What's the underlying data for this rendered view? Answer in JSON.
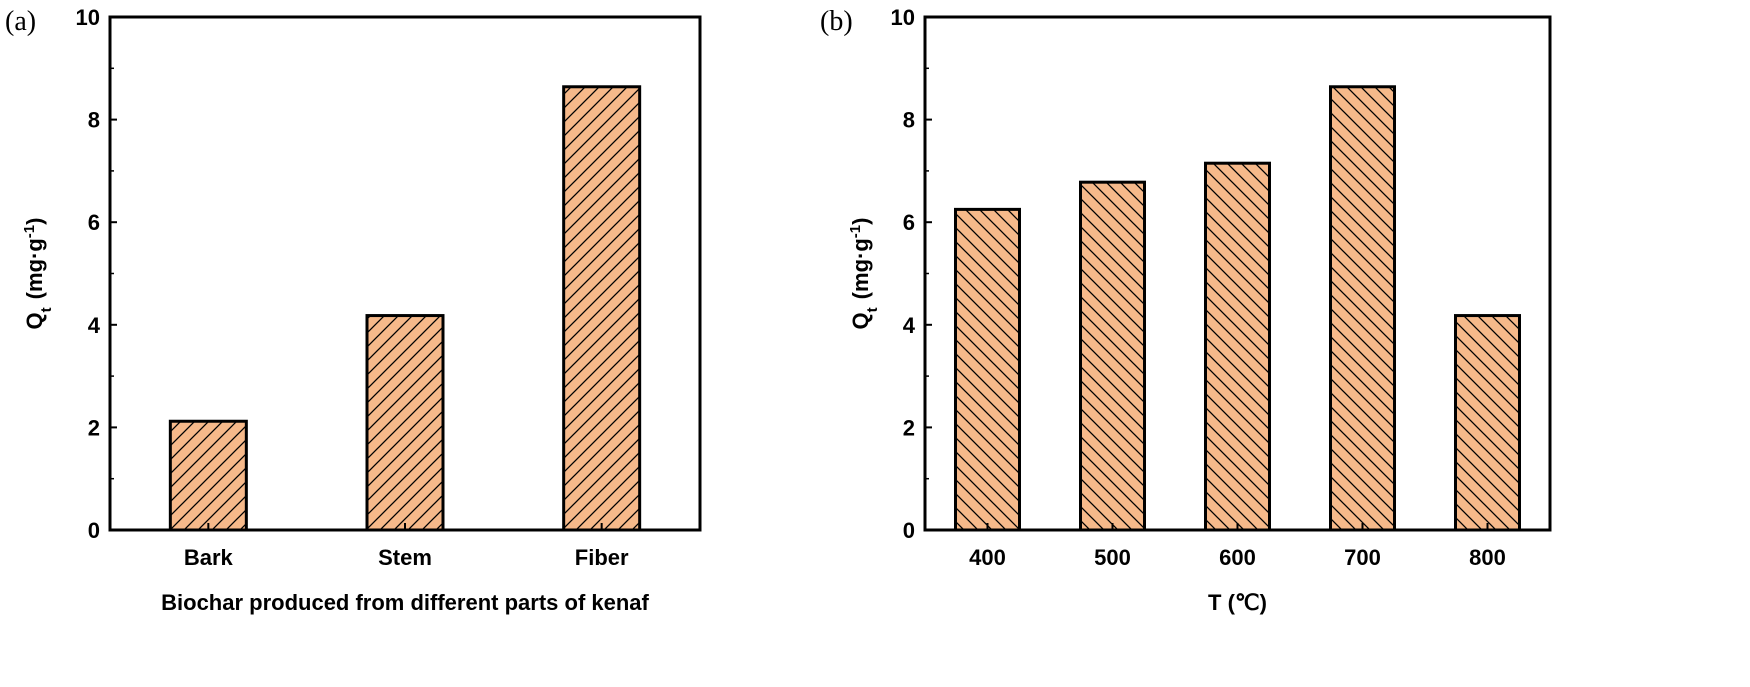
{
  "chart_data": [
    {
      "type": "bar",
      "panel_label": "(a)",
      "categories": [
        "Bark",
        "Stem",
        "Fiber"
      ],
      "values": [
        2.12,
        4.18,
        8.64
      ],
      "xlabel": "Biochar produced from different parts of kenaf",
      "ylabel": "Qt (mg·g-1)",
      "ylabel_main": "Q",
      "ylabel_sub": "t",
      "ylabel_unit": "(mg·g",
      "ylabel_sup": "-1",
      "ylabel_close": ")",
      "ylim": [
        0,
        10
      ],
      "yticks": [
        "0",
        "2",
        "4",
        "6",
        "8",
        "10"
      ],
      "hatch": "forward-diagonal",
      "grid": false
    },
    {
      "type": "bar",
      "panel_label": "(b)",
      "categories": [
        "400",
        "500",
        "600",
        "700",
        "800"
      ],
      "values": [
        6.25,
        6.78,
        7.15,
        8.64,
        4.18
      ],
      "xlabel": "T (℃)",
      "ylabel": "Qt (mg·g-1)",
      "ylabel_main": "Q",
      "ylabel_sub": "t",
      "ylabel_unit": "(mg·g",
      "ylabel_sup": "-1",
      "ylabel_close": ")",
      "ylim": [
        0,
        10
      ],
      "yticks": [
        "0",
        "2",
        "4",
        "6",
        "8",
        "10"
      ],
      "hatch": "back-diagonal",
      "grid": false
    }
  ],
  "colors": {
    "bar_fill": "#F6B98A",
    "bar_edge": "#000000",
    "hatch": "#000000"
  }
}
